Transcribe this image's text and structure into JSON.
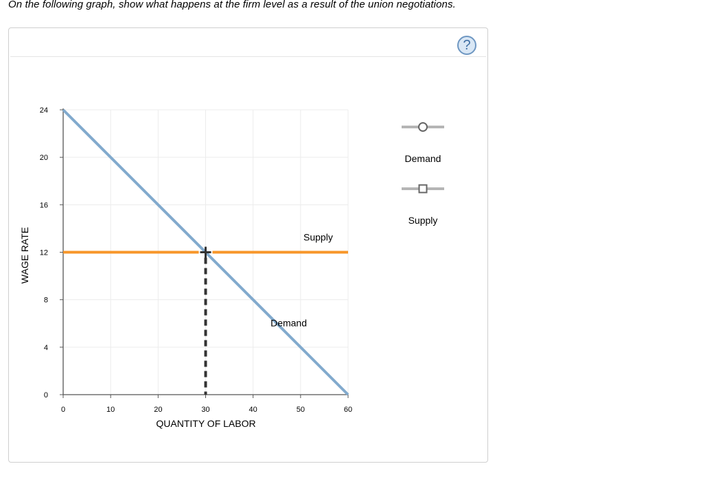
{
  "instruction": "On the following graph, show what happens at the firm level as a result of the union negotiations.",
  "help_button": {
    "label": "?",
    "icon": "question-mark-icon"
  },
  "colors": {
    "demand": "#82aacd",
    "supply": "#f7962a",
    "equilibrium": "#333333",
    "grid": "#ececec",
    "legend_line": "#b5b5b5"
  },
  "legend": [
    {
      "label": "Demand",
      "marker": "circle"
    },
    {
      "label": "Supply",
      "marker": "square"
    }
  ],
  "chart_data": {
    "type": "line",
    "xlabel": "QUANTITY OF LABOR",
    "ylabel": "WAGE RATE",
    "xlim": [
      0,
      60
    ],
    "ylim": [
      0,
      24
    ],
    "x_ticks": [
      0,
      10,
      20,
      30,
      40,
      50,
      60
    ],
    "y_ticks": [
      0,
      4,
      8,
      12,
      16,
      20,
      24
    ],
    "grid": true,
    "series": [
      {
        "name": "Demand",
        "points": [
          [
            0,
            24
          ],
          [
            60,
            0
          ]
        ]
      },
      {
        "name": "Supply",
        "points": [
          [
            0,
            12
          ],
          [
            60,
            12
          ]
        ]
      }
    ],
    "equilibrium": {
      "x": 30,
      "y": 12
    }
  }
}
